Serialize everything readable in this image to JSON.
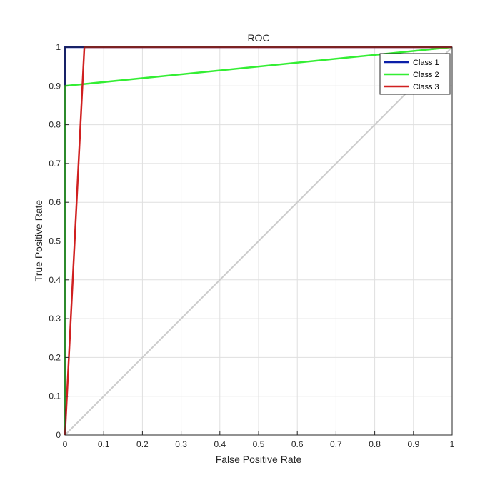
{
  "chart_data": {
    "type": "line",
    "title": "ROC",
    "xlabel": "False Positive Rate",
    "ylabel": "True Positive Rate",
    "xlim": [
      0,
      1
    ],
    "ylim": [
      0,
      1
    ],
    "grid": true,
    "legend_position": "top-right",
    "xticks": [
      "0",
      "0.1",
      "0.2",
      "0.3",
      "0.4",
      "0.5",
      "0.6",
      "0.7",
      "0.8",
      "0.9",
      "1"
    ],
    "yticks": [
      "0",
      "0.1",
      "0.2",
      "0.3",
      "0.4",
      "0.5",
      "0.6",
      "0.7",
      "0.8",
      "0.9",
      "1"
    ],
    "reference_line": {
      "x": [
        0,
        1
      ],
      "y": [
        0,
        1
      ],
      "color": "#cccccc"
    },
    "series": [
      {
        "name": "Class 1",
        "color": "#0b1fa8",
        "x": [
          0,
          0,
          0.05,
          1
        ],
        "y": [
          0,
          1,
          1,
          1
        ]
      },
      {
        "name": "Class 2",
        "color": "#33ee33",
        "x": [
          0,
          0,
          1
        ],
        "y": [
          0,
          0.9,
          1
        ]
      },
      {
        "name": "Class 3",
        "color": "#d02020",
        "x": [
          0,
          0.05,
          1
        ],
        "y": [
          0,
          1,
          1
        ]
      }
    ]
  }
}
